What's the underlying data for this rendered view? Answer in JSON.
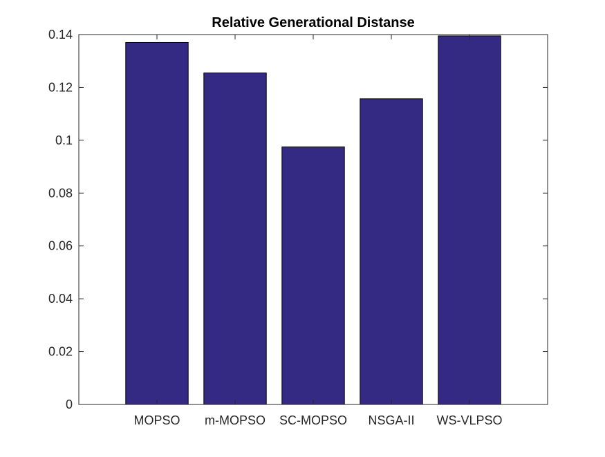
{
  "chart_data": {
    "type": "bar",
    "title": "Relative Generational Distanse",
    "xlabel": "",
    "ylabel": "",
    "categories": [
      "MOPSO",
      "m-MOPSO",
      "SC-MOPSO",
      "NSGA-II",
      "WS-VLPSO"
    ],
    "values": [
      0.137,
      0.1255,
      0.0975,
      0.1157,
      0.1395
    ],
    "ylim": [
      0,
      0.14
    ],
    "yticks": [
      0,
      0.02,
      0.04,
      0.06,
      0.08,
      0.1,
      0.12,
      0.14
    ],
    "ytick_labels": [
      "0",
      "0.02",
      "0.04",
      "0.06",
      "0.08",
      "0.1",
      "0.12",
      "0.14"
    ],
    "bar_color": "#342a83",
    "axis_color": "#262626",
    "grid": false,
    "legend": "none"
  }
}
